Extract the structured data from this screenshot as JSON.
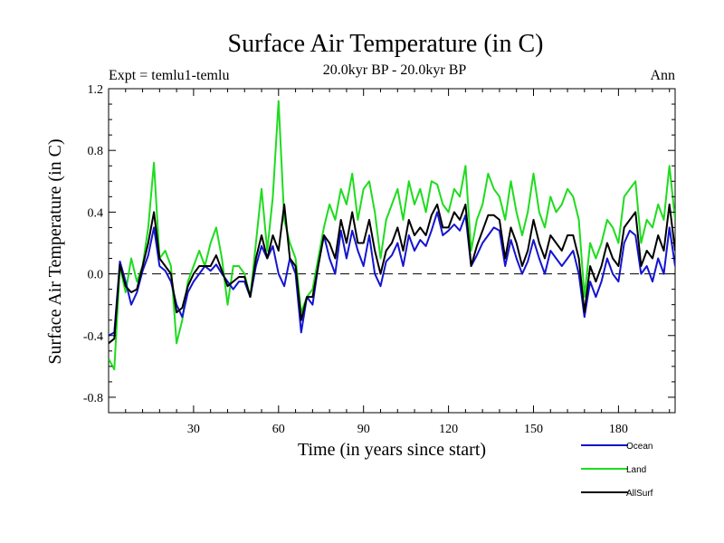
{
  "chart_data": {
    "type": "line",
    "title": "Surface Air Temperature (in C)",
    "subtitle": "20.0kyr BP - 20.0kyr BP",
    "left_label": "Expt = temlu1-temlu",
    "right_label": "Ann",
    "xlabel": "Time (in years since start)",
    "ylabel": "Surface Air Temperature (in C)",
    "xlim": [
      0,
      200
    ],
    "ylim": [
      -0.9,
      1.2
    ],
    "xticks": [
      30,
      60,
      90,
      120,
      150,
      180
    ],
    "xtick_labels": [
      "30",
      "60",
      "90",
      "120",
      "150",
      "180"
    ],
    "yticks": [
      -0.8,
      -0.4,
      0.0,
      0.4,
      0.8,
      1.2
    ],
    "ytick_labels": [
      "-0.8",
      "-0.4",
      "0.0",
      "0.4",
      "0.8",
      "1.2"
    ],
    "reference_line": 0,
    "x": [
      0,
      2,
      4,
      6,
      8,
      10,
      12,
      14,
      16,
      18,
      20,
      22,
      24,
      26,
      28,
      30,
      32,
      34,
      36,
      38,
      40,
      42,
      44,
      46,
      48,
      50,
      52,
      54,
      56,
      58,
      60,
      62,
      64,
      66,
      68,
      70,
      72,
      74,
      76,
      78,
      80,
      82,
      84,
      86,
      88,
      90,
      92,
      94,
      96,
      98,
      100,
      102,
      104,
      106,
      108,
      110,
      112,
      114,
      116,
      118,
      120,
      122,
      124,
      126,
      128,
      130,
      132,
      134,
      136,
      138,
      140,
      142,
      144,
      146,
      148,
      150,
      152,
      154,
      156,
      158,
      160,
      162,
      164,
      166,
      168,
      170,
      172,
      174,
      176,
      178,
      180,
      182,
      184,
      186,
      188,
      190,
      192,
      194,
      196,
      198,
      200
    ],
    "series": [
      {
        "name": "Ocean",
        "color": "#1414d2",
        "values": [
          -0.4,
          -0.38,
          0.08,
          -0.05,
          -0.2,
          -0.12,
          0.02,
          0.12,
          0.3,
          0.05,
          0.02,
          -0.05,
          -0.2,
          -0.28,
          -0.12,
          -0.05,
          0.0,
          0.05,
          0.02,
          0.06,
          0.0,
          -0.05,
          -0.1,
          -0.05,
          -0.05,
          -0.15,
          0.05,
          0.18,
          0.1,
          0.18,
          0.0,
          -0.08,
          0.1,
          0.0,
          -0.38,
          -0.15,
          -0.2,
          0.05,
          0.25,
          0.1,
          0.0,
          0.28,
          0.1,
          0.28,
          0.15,
          0.05,
          0.25,
          0.0,
          -0.08,
          0.08,
          0.12,
          0.2,
          0.05,
          0.25,
          0.15,
          0.22,
          0.18,
          0.28,
          0.4,
          0.25,
          0.28,
          0.32,
          0.28,
          0.38,
          0.05,
          0.12,
          0.2,
          0.25,
          0.3,
          0.28,
          0.05,
          0.22,
          0.1,
          0.0,
          0.08,
          0.22,
          0.1,
          0.0,
          0.15,
          0.1,
          0.05,
          0.1,
          0.15,
          0.0,
          -0.28,
          -0.05,
          -0.15,
          -0.05,
          0.1,
          0.0,
          -0.05,
          0.2,
          0.28,
          0.25,
          0.0,
          0.05,
          -0.05,
          0.1,
          0.0,
          0.3,
          0.05
        ]
      },
      {
        "name": "Land",
        "color": "#1edc1e",
        "values": [
          -0.55,
          -0.62,
          0.05,
          -0.12,
          0.1,
          -0.05,
          0.05,
          0.3,
          0.72,
          0.1,
          0.15,
          0.05,
          -0.45,
          -0.3,
          -0.05,
          0.05,
          0.15,
          0.05,
          0.2,
          0.3,
          0.1,
          -0.2,
          0.05,
          0.05,
          0.0,
          -0.15,
          0.2,
          0.55,
          0.15,
          0.5,
          1.12,
          0.35,
          0.2,
          0.1,
          -0.25,
          -0.15,
          -0.1,
          0.1,
          0.3,
          0.45,
          0.35,
          0.55,
          0.45,
          0.65,
          0.35,
          0.55,
          0.6,
          0.4,
          0.1,
          0.35,
          0.45,
          0.55,
          0.35,
          0.6,
          0.45,
          0.55,
          0.4,
          0.6,
          0.58,
          0.45,
          0.4,
          0.55,
          0.5,
          0.7,
          0.15,
          0.35,
          0.45,
          0.65,
          0.55,
          0.5,
          0.35,
          0.6,
          0.4,
          0.25,
          0.4,
          0.65,
          0.4,
          0.3,
          0.5,
          0.4,
          0.45,
          0.55,
          0.5,
          0.35,
          -0.15,
          0.2,
          0.1,
          0.2,
          0.35,
          0.3,
          0.2,
          0.5,
          0.55,
          0.6,
          0.2,
          0.35,
          0.3,
          0.45,
          0.35,
          0.7,
          0.35
        ]
      },
      {
        "name": "AllSurf",
        "color": "#000000",
        "values": [
          -0.45,
          -0.42,
          0.06,
          -0.08,
          -0.12,
          -0.1,
          0.05,
          0.2,
          0.4,
          0.1,
          0.05,
          0.0,
          -0.25,
          -0.22,
          -0.08,
          0.0,
          0.05,
          0.05,
          0.05,
          0.12,
          0.02,
          -0.08,
          -0.05,
          -0.02,
          -0.02,
          -0.15,
          0.1,
          0.25,
          0.1,
          0.25,
          0.15,
          0.45,
          0.1,
          0.05,
          -0.3,
          -0.15,
          -0.15,
          0.05,
          0.25,
          0.2,
          0.1,
          0.35,
          0.2,
          0.4,
          0.2,
          0.2,
          0.35,
          0.15,
          0.0,
          0.15,
          0.2,
          0.3,
          0.15,
          0.35,
          0.25,
          0.3,
          0.25,
          0.38,
          0.45,
          0.3,
          0.3,
          0.4,
          0.35,
          0.45,
          0.05,
          0.18,
          0.28,
          0.38,
          0.38,
          0.35,
          0.1,
          0.3,
          0.2,
          0.05,
          0.15,
          0.35,
          0.2,
          0.1,
          0.25,
          0.2,
          0.15,
          0.25,
          0.25,
          0.1,
          -0.25,
          0.05,
          -0.05,
          0.05,
          0.2,
          0.1,
          0.05,
          0.3,
          0.35,
          0.4,
          0.05,
          0.15,
          0.1,
          0.25,
          0.15,
          0.45,
          0.15
        ]
      }
    ],
    "legend": [
      "Ocean",
      "Land",
      "AllSurf"
    ],
    "legend_position": "bottom-right"
  }
}
